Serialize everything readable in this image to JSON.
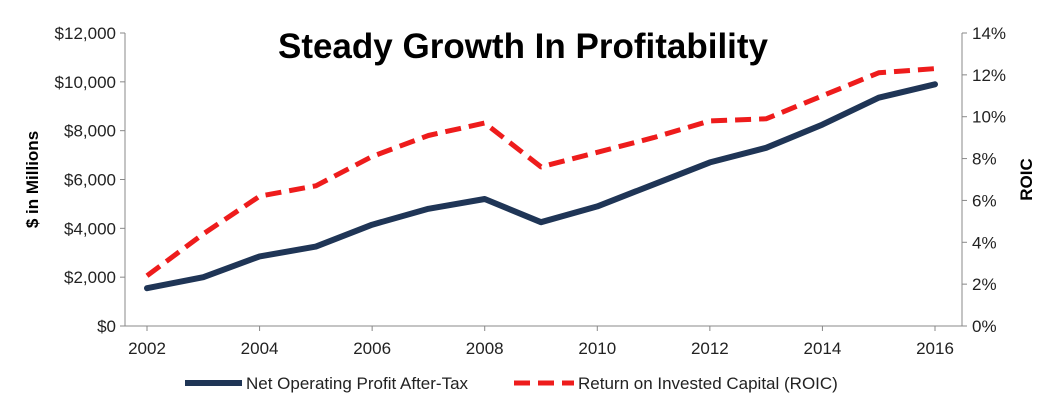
{
  "chart_data": {
    "type": "line",
    "title": "Steady Growth In Profitability",
    "ylabel": "$ in Millions",
    "y2label": "ROIC",
    "x": [
      2002,
      2003,
      2004,
      2005,
      2006,
      2007,
      2008,
      2009,
      2010,
      2011,
      2012,
      2013,
      2014,
      2015,
      2016
    ],
    "x_ticks": [
      "2002",
      "2004",
      "2006",
      "2008",
      "2010",
      "2012",
      "2014",
      "2016"
    ],
    "ylim": [
      0,
      12000
    ],
    "y_ticks": [
      "$0",
      "$2,000",
      "$4,000",
      "$6,000",
      "$8,000",
      "$10,000",
      "$12,000"
    ],
    "y2lim": [
      0,
      14
    ],
    "y2_ticks": [
      "0%",
      "2%",
      "4%",
      "6%",
      "8%",
      "10%",
      "12%",
      "14%"
    ],
    "legend_position": "bottom",
    "grid": false,
    "series": [
      {
        "name": "Net Operating Profit After-Tax",
        "axis": "left",
        "color": "#1f3556",
        "style": "solid",
        "values": [
          1550,
          2000,
          2850,
          3250,
          4150,
          4800,
          5200,
          4250,
          4900,
          5800,
          6700,
          7300,
          8250,
          9350,
          9900
        ]
      },
      {
        "name": "Return on Invested Capital (ROIC)",
        "axis": "right",
        "color": "#ee1c1c",
        "style": "dashed",
        "values": [
          2.4,
          4.4,
          6.2,
          6.7,
          8.1,
          9.1,
          9.7,
          7.6,
          8.3,
          9.0,
          9.8,
          9.9,
          11.0,
          12.1,
          12.3
        ]
      }
    ]
  }
}
